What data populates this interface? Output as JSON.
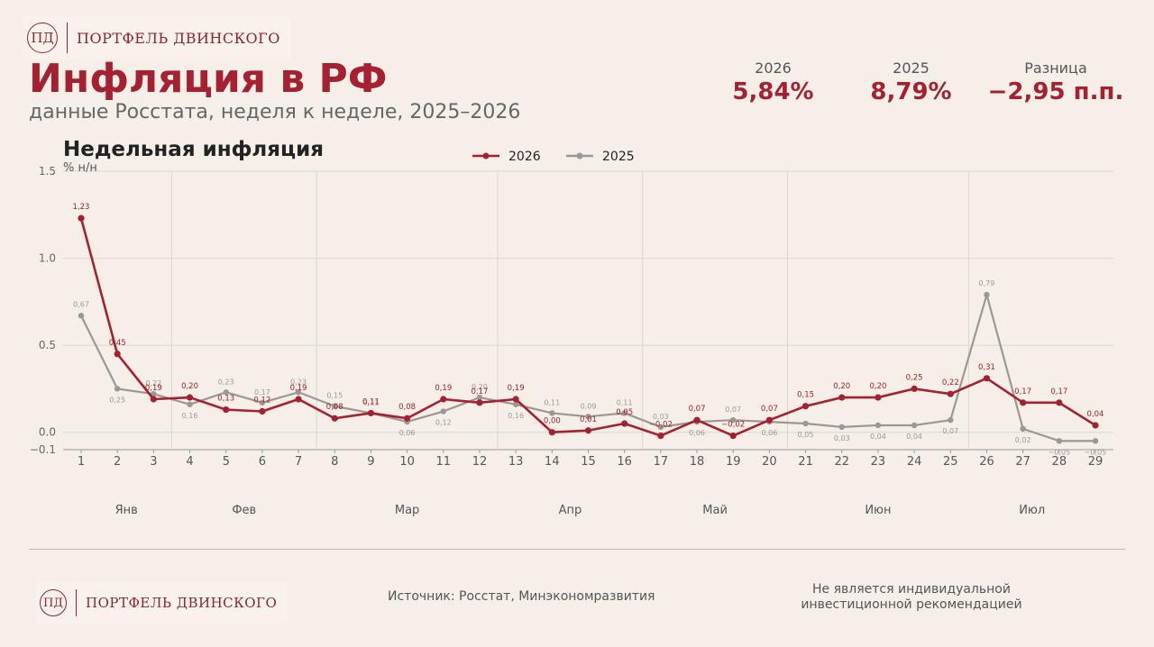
{
  "brand": {
    "monogram": "ПД",
    "name": "ПОРТФЕЛЬ ДВИНСКОГО"
  },
  "header": {
    "title": "Инфляция в РФ",
    "subtitle": "данные Росстата, неделя к неделе, 2025–2026"
  },
  "kpis": [
    {
      "label": "2026",
      "value": "5,84%"
    },
    {
      "label": "2025",
      "value": "8,79%"
    },
    {
      "label": "Разница",
      "value": "−2,95 п.п."
    }
  ],
  "footer": {
    "source": "Источник: Росстат, Минэкономразвития",
    "disclaimer": "Не является индивидуальной инвестиционной рекомендацией"
  },
  "colors": {
    "accent": "#a52030",
    "series_2026": "#a52030",
    "series_2025": "#9a9794",
    "background": "#f5efe8"
  },
  "chart_data": {
    "type": "line",
    "title": "Недельная инфляция",
    "ylabel": "% н/н",
    "xlabel": "",
    "ylim": [
      -0.1,
      1.5
    ],
    "yticks": [
      "1.5",
      "1.0",
      "0.5",
      "0.0",
      "−0.1"
    ],
    "ytick_values": [
      1.5,
      1.0,
      0.5,
      0.0,
      -0.1
    ],
    "grid": true,
    "legend_position": "top-center",
    "x": [
      1,
      2,
      3,
      4,
      5,
      6,
      7,
      8,
      9,
      10,
      11,
      12,
      13,
      14,
      15,
      16,
      17,
      18,
      19,
      20,
      21,
      22,
      23,
      24,
      25,
      26,
      27,
      28,
      29
    ],
    "months": [
      {
        "label": "Янв",
        "from": 1,
        "to": 3.5
      },
      {
        "label": "Фев",
        "from": 3.5,
        "to": 7.5
      },
      {
        "label": "Мар",
        "from": 7.5,
        "to": 12.5
      },
      {
        "label": "Апр",
        "from": 12.5,
        "to": 16.5
      },
      {
        "label": "Май",
        "from": 16.5,
        "to": 20.5
      },
      {
        "label": "Июн",
        "from": 20.5,
        "to": 25.5
      },
      {
        "label": "Июл",
        "from": 25.5,
        "to": 29
      }
    ],
    "series": [
      {
        "name": "2026",
        "color": "#a52030",
        "values": [
          1.23,
          0.45,
          0.19,
          0.2,
          0.13,
          0.12,
          0.19,
          0.08,
          0.11,
          0.08,
          0.19,
          0.17,
          0.19,
          0.0,
          0.01,
          0.05,
          -0.02,
          0.07,
          -0.02,
          0.07,
          0.15,
          0.2,
          0.2,
          0.25,
          0.22,
          0.31,
          0.17,
          0.17,
          0.04
        ],
        "labels": [
          "1,23",
          "0,45",
          "0,19",
          "0,20",
          "0,13",
          "0,12",
          "0,19",
          "0,08",
          "0,11",
          "0,08",
          "0,19",
          "0,17",
          "0,19",
          "0,00",
          "0,01",
          "0,05",
          "−0,02",
          "0,07",
          "−0,02",
          "0,07",
          "0,15",
          "0,20",
          "0,20",
          "0,25",
          "0,22",
          "0,31",
          "0,17",
          "0,17",
          "0,04"
        ]
      },
      {
        "name": "2025",
        "color": "#9a9794",
        "values": [
          0.67,
          0.25,
          0.22,
          0.16,
          0.23,
          0.17,
          0.23,
          0.15,
          0.11,
          0.06,
          0.12,
          0.2,
          0.16,
          0.11,
          0.09,
          0.11,
          0.03,
          0.06,
          0.07,
          0.06,
          0.05,
          0.03,
          0.04,
          0.04,
          0.07,
          0.79,
          0.02,
          -0.05,
          -0.05
        ],
        "labels": [
          "0,67",
          "0,25",
          "0,22",
          "0,16",
          "0,23",
          "0,17",
          "0,23",
          "0,15",
          "0,11",
          "0,06",
          "0,12",
          "0,20",
          "0,16",
          "0,11",
          "0,09",
          "0,11",
          "0,03",
          "0,06",
          "0,07",
          "0,06",
          "0,05",
          "0,03",
          "0,04",
          "0,04",
          "0,07",
          "0,79",
          "0,02",
          "−0,05",
          "−0,05"
        ]
      }
    ]
  }
}
